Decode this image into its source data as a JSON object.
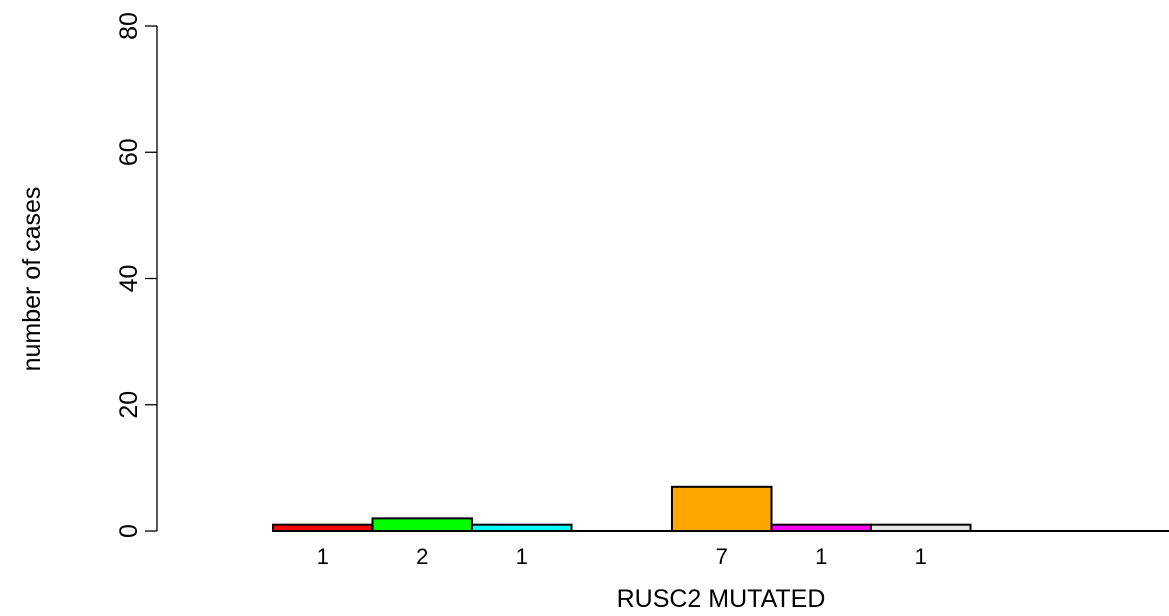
{
  "chart_data": {
    "type": "bar",
    "title": "",
    "xlabel": "RUSC2 MUTATED",
    "ylabel": "number of cases",
    "ylim": [
      0,
      80
    ],
    "yticks": [
      0,
      20,
      40,
      60,
      80
    ],
    "grid": false,
    "groups": [
      {
        "bars": [
          {
            "value": 1,
            "label": "1",
            "color": "#ff0000"
          },
          {
            "value": 2,
            "label": "2",
            "color": "#00ff00"
          },
          {
            "value": 1,
            "label": "1",
            "color": "#00ffff"
          }
        ]
      },
      {
        "bars": [
          {
            "value": 7,
            "label": "7",
            "color": "#ffa500"
          },
          {
            "value": 1,
            "label": "1",
            "color": "#ff00ff"
          },
          {
            "value": 1,
            "label": "1",
            "color": "#e6e6e6"
          }
        ]
      }
    ]
  }
}
